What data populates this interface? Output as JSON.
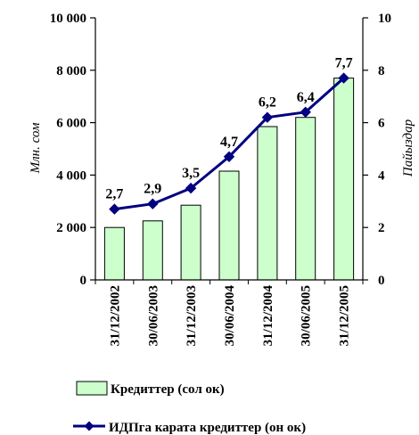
{
  "chart_data": {
    "type": "bar+line",
    "categories": [
      "31/12/2002",
      "30/06/2003",
      "31/12/2003",
      "30/06/2004",
      "31/12/2004",
      "30/06/2005",
      "31/12/2005"
    ],
    "series": [
      {
        "name": "Кредиттер (сол ок)",
        "type": "bar",
        "axis": "left",
        "color": "#ccffcc",
        "values": [
          2000,
          2250,
          2850,
          4150,
          5850,
          6200,
          7700
        ]
      },
      {
        "name": "ИДПга карата кредиттер (он ок)",
        "type": "line",
        "axis": "right",
        "color": "#000080",
        "values": [
          2.7,
          2.9,
          3.5,
          4.7,
          6.2,
          6.4,
          7.7
        ],
        "data_labels": [
          "2,7",
          "2,9",
          "3,5",
          "4,7",
          "6,2",
          "6,4",
          "7,7"
        ]
      }
    ],
    "y_left": {
      "label": "Млн. сом",
      "lim": [
        0,
        10000
      ],
      "ticks": [
        0,
        2000,
        4000,
        6000,
        8000,
        10000
      ],
      "tick_labels": [
        "0",
        "2 000",
        "4 000",
        "6 000",
        "8 000",
        "10 000"
      ]
    },
    "y_right": {
      "label": "Пайыздар",
      "lim": [
        0,
        10
      ],
      "ticks": [
        0,
        2,
        4,
        6,
        8,
        10
      ],
      "tick_labels": [
        "0",
        "2",
        "4",
        "6",
        "8",
        "10"
      ]
    },
    "grid": false,
    "legend_position": "bottom"
  }
}
